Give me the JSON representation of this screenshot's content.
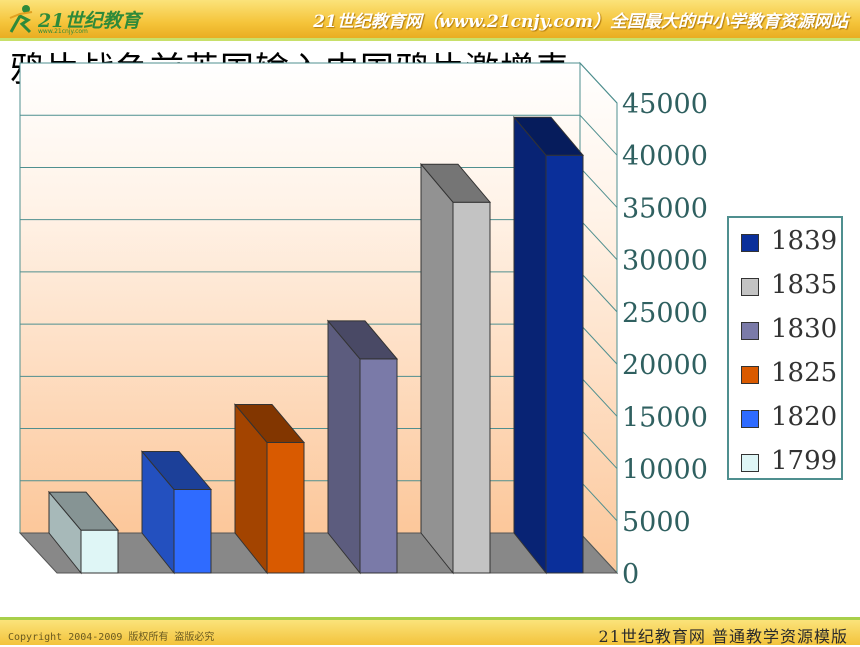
{
  "header": {
    "logo_text": "21世纪教育",
    "logo_url": "www.21cnjy.com",
    "slogan": "21世纪教育网（www.21cnjy.com）全国最大的中小学教育资源网站"
  },
  "page_title": "鸦片战争前英国输入中国鸦片激增表",
  "footer": {
    "copyright": "Copyright 2004-2009 版权所有 盗版必究",
    "brand": "21世纪教育网   普通教学资源模版"
  },
  "chart_data": {
    "type": "bar",
    "categories": [
      "1799",
      "1820",
      "1825",
      "1830",
      "1835",
      "1839"
    ],
    "values": [
      4100,
      8000,
      12500,
      20500,
      35500,
      40000
    ],
    "ylim": [
      0,
      45000
    ],
    "yticks": [
      "0",
      "5000",
      "10000",
      "15000",
      "20000",
      "25000",
      "30000",
      "35000",
      "40000",
      "45000"
    ],
    "grid": true,
    "legend_position": "right",
    "legend_order": [
      "1839",
      "1835",
      "1830",
      "1825",
      "1820",
      "1799"
    ],
    "colors": {
      "1799": "#dff6f6",
      "1820": "#2f6bff",
      "1825": "#d95a00",
      "1830": "#7a7aa8",
      "1835": "#c3c3c3",
      "1839": "#0a2f9a"
    }
  }
}
